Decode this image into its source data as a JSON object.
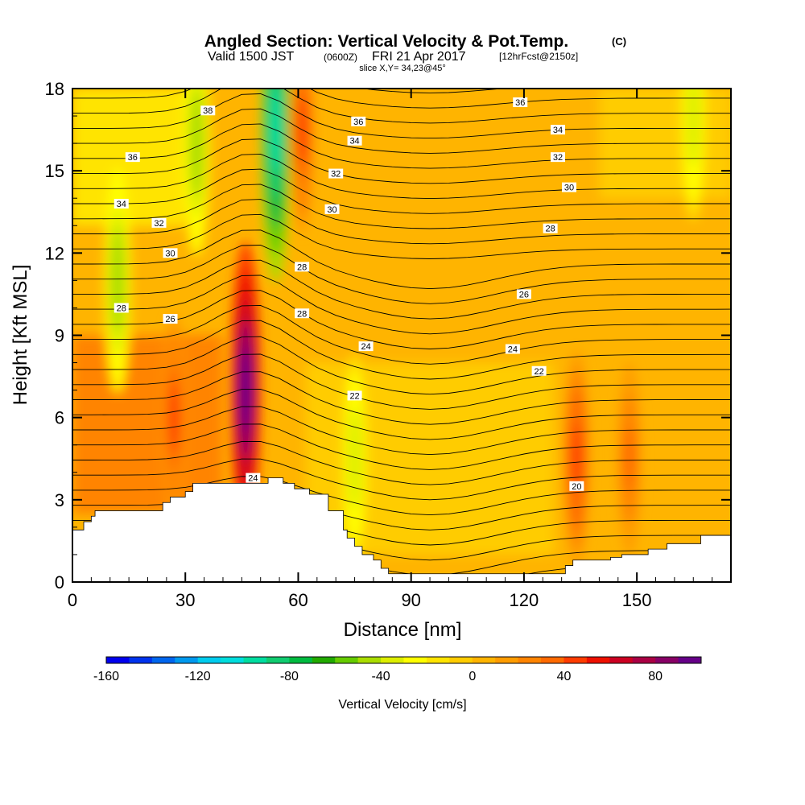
{
  "chart_data": {
    "type": "heatmap",
    "title": "Angled Section: Vertical Velocity & Pot.Temp.",
    "title_unit": "(C)",
    "subtitle_prefix": "Valid 1500 JST",
    "subtitle_zulu": "(0600Z)",
    "subtitle_date": "FRI 21 Apr 2017",
    "subtitle_fcst": "[12hrFcst@2150z]",
    "slice_label": "slice X,Y= 34,23@45°",
    "xlabel": "Distance [nm]",
    "ylabel": "Height [Kft MSL]",
    "xlim": [
      0,
      175
    ],
    "ylim": [
      0,
      18
    ],
    "xticks": [
      0,
      30,
      60,
      90,
      120,
      150
    ],
    "yticks": [
      0,
      3,
      6,
      9,
      12,
      15,
      18
    ],
    "colorbar": {
      "label": "Vertical Velocity [cm/s]",
      "ticks": [
        -160,
        -120,
        -80,
        -40,
        0,
        40,
        80
      ],
      "min": -160,
      "max": 100,
      "step": 10,
      "colors": [
        "#0000ee",
        "#0033ee",
        "#0066ee",
        "#0099ee",
        "#00ccee",
        "#00dddd",
        "#00dda0",
        "#10cc70",
        "#00bb40",
        "#22aa00",
        "#66cc00",
        "#aadd00",
        "#ddee00",
        "#ffff00",
        "#ffe400",
        "#ffcc00",
        "#ffb400",
        "#ff9c00",
        "#ff8400",
        "#ff6a00",
        "#ff3c00",
        "#ee1000",
        "#cc0022",
        "#aa0044",
        "#880066",
        "#660088"
      ]
    },
    "terrain_profile": {
      "x": [
        0,
        3,
        5,
        6,
        22,
        24,
        26,
        30,
        32,
        36,
        42,
        52,
        56,
        59,
        63,
        68,
        72,
        73,
        75,
        77,
        80,
        82,
        84,
        88,
        91,
        94,
        120,
        131,
        133,
        142,
        143,
        146,
        153,
        158,
        167,
        175
      ],
      "height": [
        1.9,
        2.2,
        2.4,
        2.6,
        2.6,
        2.9,
        3.1,
        3.3,
        3.6,
        3.6,
        3.6,
        3.8,
        3.6,
        3.4,
        3.2,
        2.6,
        1.9,
        1.6,
        1.3,
        1.0,
        0.8,
        0.5,
        0.3,
        0.3,
        0.3,
        0.3,
        0.3,
        0.6,
        0.8,
        0.8,
        0.9,
        1.0,
        1.2,
        1.4,
        1.7,
        1.7
      ]
    },
    "updrafts_cm_s": [
      {
        "x": 46,
        "z": 7.0,
        "value": 95
      },
      {
        "x": 27,
        "z": 6.0,
        "value": 40
      },
      {
        "x": 134,
        "z": 4.5,
        "value": 45
      },
      {
        "x": 61,
        "z": 16.5,
        "value": 40
      },
      {
        "x": 148,
        "z": 4.5,
        "value": 30
      }
    ],
    "downdrafts_cm_s": [
      {
        "x": 54,
        "z": 16.5,
        "value": -100
      },
      {
        "x": 33,
        "z": 16.0,
        "value": -50
      },
      {
        "x": 12,
        "z": 11.0,
        "value": -50
      },
      {
        "x": 75,
        "z": 4.5,
        "value": -40
      },
      {
        "x": 165,
        "z": 17.0,
        "value": -40
      }
    ],
    "potential_temperature_contours_c": {
      "levels": [
        20,
        22,
        24,
        26,
        28,
        30,
        32,
        34,
        36,
        38
      ],
      "labels": [
        {
          "text": "38",
          "x": 36,
          "z": 17.2
        },
        {
          "text": "36",
          "x": 16,
          "z": 15.5
        },
        {
          "text": "36",
          "x": 76,
          "z": 16.8
        },
        {
          "text": "36",
          "x": 119,
          "z": 17.5
        },
        {
          "text": "34",
          "x": 13,
          "z": 13.8
        },
        {
          "text": "34",
          "x": 75,
          "z": 16.1
        },
        {
          "text": "34",
          "x": 129,
          "z": 16.5
        },
        {
          "text": "32",
          "x": 23,
          "z": 13.1
        },
        {
          "text": "32",
          "x": 70,
          "z": 14.9
        },
        {
          "text": "32",
          "x": 129,
          "z": 15.5
        },
        {
          "text": "30",
          "x": 26,
          "z": 12.0
        },
        {
          "text": "30",
          "x": 69,
          "z": 13.6
        },
        {
          "text": "30",
          "x": 132,
          "z": 14.4
        },
        {
          "text": "28",
          "x": 13,
          "z": 10.0
        },
        {
          "text": "28",
          "x": 61,
          "z": 11.5
        },
        {
          "text": "28",
          "x": 61,
          "z": 9.8
        },
        {
          "text": "28",
          "x": 127,
          "z": 12.9
        },
        {
          "text": "26",
          "x": 26,
          "z": 9.6
        },
        {
          "text": "26",
          "x": 120,
          "z": 10.5
        },
        {
          "text": "24",
          "x": 78,
          "z": 8.6
        },
        {
          "text": "24",
          "x": 117,
          "z": 8.5
        },
        {
          "text": "24",
          "x": 48,
          "z": 3.8
        },
        {
          "text": "22",
          "x": 75,
          "z": 6.8
        },
        {
          "text": "22",
          "x": 124,
          "z": 7.7
        },
        {
          "text": "20",
          "x": 134,
          "z": 3.5
        }
      ]
    }
  }
}
